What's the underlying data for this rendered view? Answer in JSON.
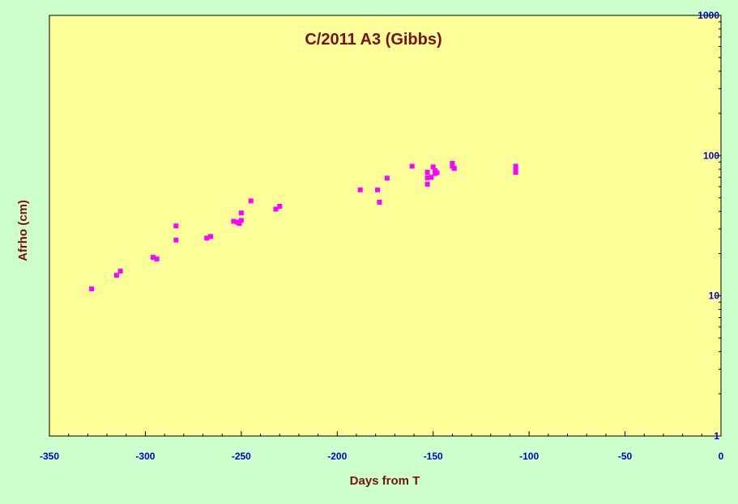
{
  "chart_data": {
    "type": "scatter",
    "title": "C/2011 A3 (Gibbs)",
    "xlabel": "Days from T",
    "ylabel": "Afrho (cm)",
    "xlim": [
      -350,
      0
    ],
    "ylim": [
      1,
      1000
    ],
    "yscale": "log",
    "x_ticks": [
      -350,
      -300,
      -250,
      -200,
      -150,
      -100,
      -50,
      0
    ],
    "y_ticks": [
      1,
      10,
      100,
      1000
    ],
    "y_axis_side": "right",
    "grid": false,
    "series": [
      {
        "points": [
          [
            -328,
            11.2
          ],
          [
            -315,
            14.0
          ],
          [
            -313,
            15.0
          ],
          [
            -296,
            18.8
          ],
          [
            -294,
            18.3
          ],
          [
            -284,
            31.5
          ],
          [
            -284,
            25.0
          ],
          [
            -268,
            25.8
          ],
          [
            -266,
            26.5
          ],
          [
            -254,
            34.0
          ],
          [
            -252,
            33.5
          ],
          [
            -251,
            32.8
          ],
          [
            -250,
            34.5
          ],
          [
            -250,
            39.0
          ],
          [
            -245,
            47.5
          ],
          [
            -232,
            41.5
          ],
          [
            -230,
            43.5
          ],
          [
            -188,
            57.0
          ],
          [
            -179,
            57.0
          ],
          [
            -178,
            46.5
          ],
          [
            -174,
            69.0
          ],
          [
            -161,
            84.0
          ],
          [
            -153,
            76.0
          ],
          [
            -153,
            69.5
          ],
          [
            -153,
            62.5
          ],
          [
            -151,
            70.0
          ],
          [
            -150,
            83.0
          ],
          [
            -149,
            78.0
          ],
          [
            -149,
            74.5
          ],
          [
            -148,
            75.5
          ],
          [
            -140,
            88.0
          ],
          [
            -140,
            84.0
          ],
          [
            -139,
            81.0
          ],
          [
            -107,
            84.0
          ],
          [
            -107,
            79.0
          ],
          [
            -107,
            76.0
          ]
        ]
      }
    ],
    "colors": {
      "background": "#ccffcc",
      "plot_area": "#ffff99",
      "marker": "#ff00ff",
      "tick_labels": "#0000cc",
      "titles": "#7a1010"
    }
  }
}
